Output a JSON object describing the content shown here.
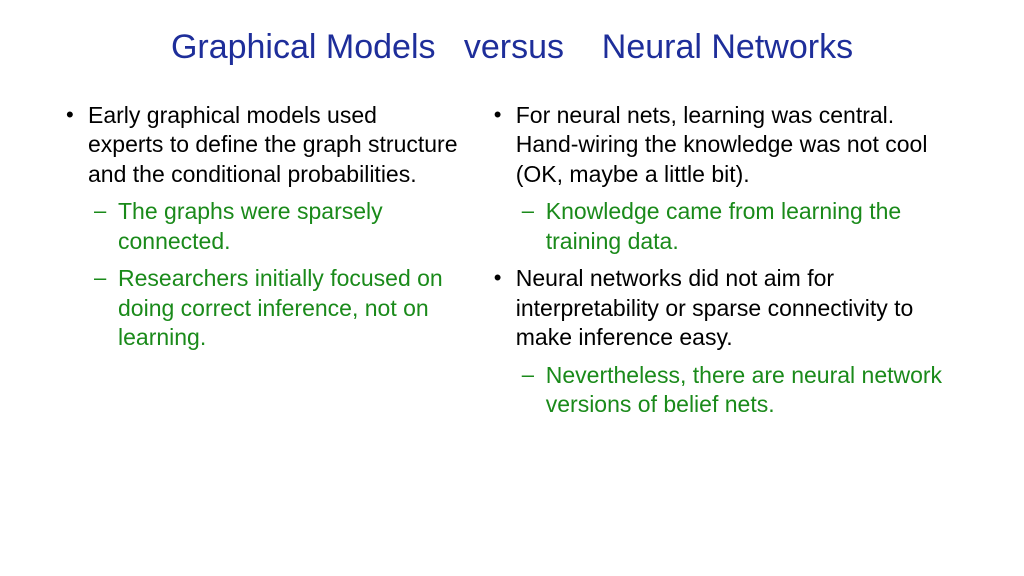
{
  "colors": {
    "title": "#1e2e9a",
    "body": "#000000",
    "sub": "#1a8a1a",
    "background": "#ffffff"
  },
  "title": "Graphical Models   versus    Neural Networks",
  "left": {
    "items": [
      {
        "text": "Early graphical models used experts to define the graph structure and the conditional probabilities.",
        "sub": [
          "The graphs were sparsely connected.",
          "Researchers initially focused on doing correct inference, not on learning."
        ]
      }
    ]
  },
  "right": {
    "items": [
      {
        "text": "For neural nets, learning was central. Hand-wiring the knowledge was not cool (OK, maybe a little bit).",
        "sub": [
          "Knowledge came from learning the training data."
        ]
      },
      {
        "text": "Neural networks did not aim for interpretability or sparse connectivity to make inference easy.",
        "sub": [
          "Nevertheless, there are neural network versions of belief nets."
        ]
      }
    ]
  }
}
